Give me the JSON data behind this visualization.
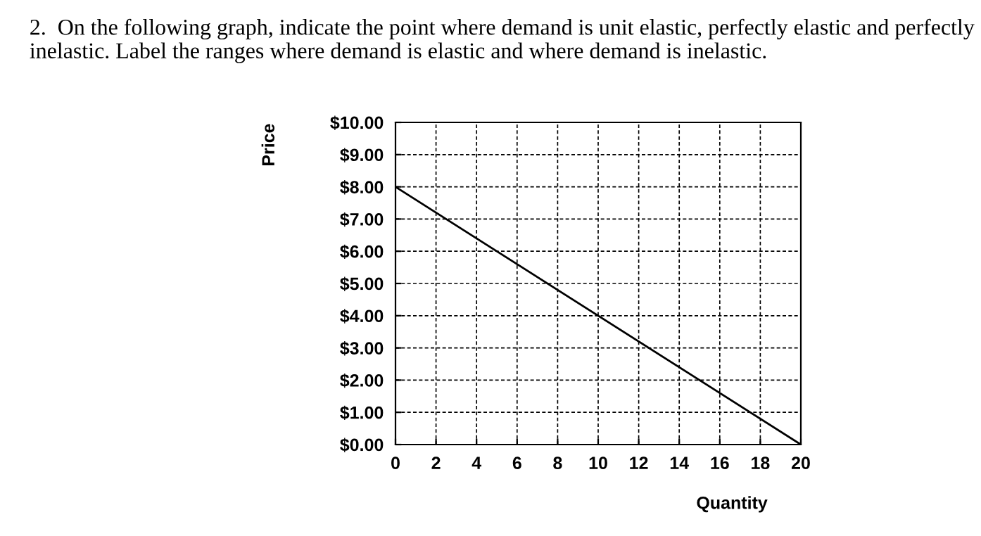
{
  "chart_data": {
    "type": "line",
    "title": "2.  On the following graph, indicate the point where demand is unit elastic, perfectly elastic and perfectly inelastic. Label the ranges where demand is elastic and where demand is inelastic.",
    "xlabel": "Quantity",
    "ylabel": "Price",
    "x": [
      0,
      20
    ],
    "series": [
      {
        "color": "#000000",
        "values": [
          8,
          0
        ]
      }
    ],
    "xlim": [
      0,
      20
    ],
    "ylim": [
      0,
      10
    ],
    "xticks": [
      0,
      2,
      4,
      6,
      8,
      10,
      12,
      14,
      16,
      18,
      20
    ],
    "yticks": [
      {
        "value": 0,
        "label": "$0.00"
      },
      {
        "value": 1,
        "label": "$1.00"
      },
      {
        "value": 2,
        "label": "$2.00"
      },
      {
        "value": 3,
        "label": "$3.00"
      },
      {
        "value": 4,
        "label": "$4.00"
      },
      {
        "value": 5,
        "label": "$5.00"
      },
      {
        "value": 6,
        "label": "$6.00"
      },
      {
        "value": 7,
        "label": "$7.00"
      },
      {
        "value": 8,
        "label": "$8.00"
      },
      {
        "value": 9,
        "label": "$9.00"
      },
      {
        "value": 10,
        "label": "$10.00"
      }
    ],
    "grid": true,
    "marker": "none",
    "line_style": "solid"
  }
}
